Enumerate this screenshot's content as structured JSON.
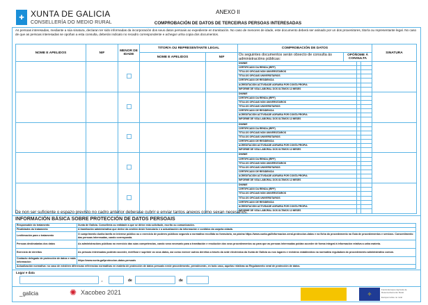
{
  "header": {
    "logo_text": "XUNTA DE GALICIA",
    "conselleria": "CONSELLERÍA DO MEDIO RURAL",
    "annex": "ANEXO II",
    "title": "COMPROBACIÓN DE DATOS DE TERCEIRAS PERSOAS INTERESADAS",
    "intro": "As persoas interesadas, mediante a súa sinatura, declaran ter sido informadas da incorporación dos seus datos persoais ao expediente en tramitación. No caso de menores de idade, este documento deberá ser asinado por un dos proxenitores, titor/a ou representante legal. No caso de que as persoas interesadas se opoñan a esta consulta, deberán indicalo no recadro correspondente e achegar unha copia dos documentos."
  },
  "table": {
    "col_name": "NOME E APELIDOS",
    "col_nif": "NIF",
    "col_minor": "MENOR DE IDADE",
    "col_guardian": "TITOR/A OU REPRESENTANTE LEGAL",
    "col_guardian_name": "NOME E APELIDOS",
    "col_guardian_nif": "NIF",
    "col_check": "COMPROBACIÓN DE DATOS",
    "col_check_desc": "Os seguintes documentos serán obxecto de consulta ás administracións públicas:",
    "col_oppose": "OPÓÑOME Á CONSULTA",
    "col_signature": "SINATURA",
    "documents": [
      "DNI/NIE",
      "CERTIFICADO DA RENDA (IRPF)",
      "TÍTULOS OFICIAIS NON UNIVERSITARIOS",
      "TÍTULOS OFICIAIS UNIVERSITARIOS",
      "CERTIFICADO DE RESIDENCIA",
      "ACREDITACIÓN ACTIVIDADE AGRARIA POR CONTA PROPIA",
      "INFORME DE VIDA LABORAL DOS ÚLTIMOS 12 MESES"
    ],
    "rows": [
      {
        "name": "",
        "nif": "",
        "minor": false,
        "guardian_name": "",
        "guardian_nif": "",
        "oppose": [
          false,
          false,
          false,
          false,
          false,
          false,
          false
        ],
        "signature": ""
      },
      {
        "name": "",
        "nif": "",
        "minor": false,
        "guardian_name": "",
        "guardian_nif": "",
        "oppose": [
          false,
          false,
          false,
          false,
          false,
          false,
          false
        ],
        "signature": ""
      },
      {
        "name": "",
        "nif": "",
        "minor": false,
        "guardian_name": "",
        "guardian_nif": "",
        "oppose": [
          false,
          false,
          false,
          false,
          false,
          false,
          false
        ],
        "signature": ""
      },
      {
        "name": "",
        "nif": "",
        "minor": false,
        "guardian_name": "",
        "guardian_nif": "",
        "oppose": [
          false,
          false,
          false,
          false,
          false,
          false,
          false
        ],
        "signature": ""
      },
      {
        "name": "",
        "nif": "",
        "minor": false,
        "guardian_name": "",
        "guardian_nif": "",
        "oppose": [
          false,
          false,
          false,
          false,
          false,
          false,
          false
        ],
        "signature": ""
      }
    ]
  },
  "note": "De non ser suficiente o espazo previsto no cadro anterior deberase cubrir e enviar tantos anexos como sexan necesarios.",
  "privacy": {
    "title": "INFORMACIÓN BÁSICA SOBRE PROTECCIÓN DE DATOS PERSOAIS",
    "rows": [
      {
        "label": "Responsable do tratamento",
        "text": "Xunta de Galicia. Consellería ou entidade a que se dirixe esta solicitude, escrito ou comunicación."
      },
      {
        "label": "Finalidades do tratamento",
        "text": "A tramitación administrativa que derive da xestión deste formulario e a actualización da información e contidos da carpeta cidadá."
      },
      {
        "label": "Lexitimación para o tratamento",
        "text": "O cumprimento dunha tarefa en interese público ou o exercicio de poderes públicos segundo a normativa recollida no formulario, na páxina https://www.xunta.gal/informacion-xeral-proteccion-datos e na ficha do procedemento na Guía de procedementos e servizos. Consentimento das persoas interesadas, cando corresponda."
      },
      {
        "label": "Persoas destinatarias dos datos",
        "text": "As administracións públicas no exercicio das súas competencias, cando sexa necesario para a tramitación e resolución dos seus procedementos ou para que as persoas interesadas poidan acceder de forma integral á información relativa a unha materia."
      },
      {
        "label": "Exercicio de dereitos",
        "text": "As persoas interesadas poderán acceder, rectificar e suprimir os seus datos, así como exercer outros dereitos a través da sede electrónica da Xunta de Galicia ou nos lugares e rexistros establecidos na normativa reguladora do procedemento administrativo común."
      },
      {
        "label": "Contacto delegado de protección de datos e máis información",
        "text": "https://www.xunta.gal/proteccion-datos-persoais"
      }
    ],
    "update": "Actualización normativa: no caso de existiren diferenzas referencias normativas en materia de protección de datos persoais neste procedemento, prevalecerán, en todo caso, aquelas relativas ao Regulamento xeral de protección de datos."
  },
  "date_section": {
    "label": "Lugar e data",
    "place": "",
    "day": "",
    "month": "",
    "year": "",
    "comma": ",",
    "of1": "de",
    "of2": "de"
  },
  "footer": {
    "galicia": "_galicia",
    "xacobeo": "Xacobeo 2021",
    "eu_text": "Fondo Europeo Agrícola de Desenvolvemento Rural",
    "eu_slogan": "Europa inviste no rural"
  },
  "colors": {
    "border": "#5bb5e6",
    "brand": "#1a8fd8",
    "spain": "#f5c400",
    "eu": "#1f3b94"
  }
}
